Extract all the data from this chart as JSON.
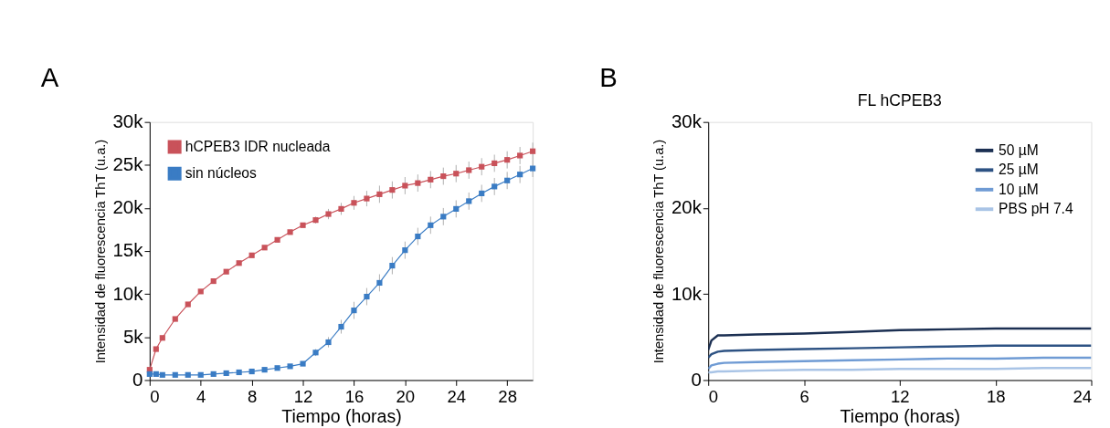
{
  "chart_data": [
    {
      "type": "line",
      "annotations": [
        "A"
      ],
      "xlabel": "Tiempo (horas)",
      "ylabel": "Intensidad de fluorescencia ThT (u.a.)",
      "x": [
        0,
        0.5,
        1,
        2,
        3,
        4,
        5,
        6,
        7,
        8,
        9,
        10,
        11,
        12,
        13,
        14,
        15,
        16,
        17,
        18,
        19,
        20,
        21,
        22,
        23,
        24,
        25,
        26,
        27,
        28,
        29,
        30
      ],
      "series": [
        {
          "name": "hCPEB3 IDR nucleada",
          "color": "#c9525a",
          "values": [
            1200,
            3600,
            4900,
            7100,
            8800,
            10300,
            11500,
            12600,
            13600,
            14500,
            15400,
            16300,
            17200,
            18000,
            18600,
            19300,
            19900,
            20600,
            21100,
            21600,
            22100,
            22600,
            22900,
            23300,
            23700,
            24000,
            24400,
            24800,
            25200,
            25600,
            26100,
            26600
          ],
          "errors": [
            null,
            null,
            null,
            null,
            null,
            null,
            null,
            null,
            null,
            null,
            null,
            null,
            null,
            null,
            400,
            600,
            700,
            800,
            900,
            1000,
            1000,
            1000,
            1000,
            1000,
            1000,
            1000,
            1000,
            1000,
            1000,
            1000,
            1000,
            1000
          ]
        },
        {
          "name": "sin núcleos",
          "color": "#3a7cc4",
          "values": [
            700,
            700,
            600,
            600,
            600,
            600,
            700,
            800,
            900,
            1000,
            1200,
            1400,
            1600,
            1900,
            3200,
            4400,
            6200,
            8100,
            9700,
            11300,
            13300,
            15100,
            16700,
            18000,
            19000,
            19900,
            20800,
            21700,
            22500,
            23200,
            23900,
            24600
          ],
          "errors": [
            null,
            null,
            null,
            null,
            null,
            null,
            null,
            null,
            null,
            null,
            null,
            null,
            null,
            null,
            400,
            600,
            800,
            1000,
            1000,
            1000,
            1000,
            1000,
            1000,
            1000,
            1000,
            1000,
            1000,
            1000,
            1000,
            1000,
            1000,
            1000
          ]
        }
      ],
      "xlim": [
        0,
        30
      ],
      "xticks": [
        0,
        4,
        8,
        12,
        16,
        20,
        24,
        28
      ],
      "ylim": [
        0,
        30000
      ],
      "yticks": [
        {
          "value": 0,
          "label": "0"
        },
        {
          "value": 5000,
          "label": "5k"
        },
        {
          "value": 10000,
          "label": "10k"
        },
        {
          "value": 15000,
          "label": "15k"
        },
        {
          "value": 20000,
          "label": "20k"
        },
        {
          "value": 25000,
          "label": "25k"
        },
        {
          "value": 30000,
          "label": "30k"
        }
      ],
      "marker": "square",
      "legend": "top left",
      "grid": false
    },
    {
      "type": "line",
      "annotations": [
        "B"
      ],
      "title": "FL hCPEB3",
      "xlabel": "Tiempo (horas)",
      "ylabel": "Intensidad de fluorescencia ThT (u.a.)",
      "x": [
        0,
        0.2,
        0.6,
        1,
        3,
        6,
        9,
        12,
        15,
        18,
        21,
        24
      ],
      "series": [
        {
          "name": "50 µM",
          "color": "#1b2f52",
          "values": [
            3500,
            4600,
            5200,
            5200,
            5300,
            5400,
            5600,
            5800,
            5900,
            6000,
            6000,
            6000
          ]
        },
        {
          "name": "25 µM",
          "color": "#2d5283",
          "values": [
            2600,
            3000,
            3300,
            3400,
            3500,
            3600,
            3700,
            3800,
            3900,
            4000,
            4000,
            4000
          ]
        },
        {
          "name": "10 µM",
          "color": "#6f9bd4",
          "values": [
            1300,
            1700,
            1900,
            2000,
            2100,
            2200,
            2300,
            2400,
            2500,
            2500,
            2600,
            2600
          ]
        },
        {
          "name": "PBS pH 7.4",
          "color": "#a9c4e6",
          "values": [
            900,
            900,
            1000,
            1000,
            1100,
            1200,
            1200,
            1300,
            1300,
            1300,
            1400,
            1400
          ]
        }
      ],
      "xlim": [
        0,
        24
      ],
      "xticks": [
        0,
        6,
        12,
        18,
        24
      ],
      "ylim": [
        0,
        30000
      ],
      "yticks": [
        {
          "value": 0,
          "label": "0"
        },
        {
          "value": 10000,
          "label": "10k"
        },
        {
          "value": 20000,
          "label": "20k"
        },
        {
          "value": 30000,
          "label": "30k"
        }
      ],
      "marker": "none",
      "legend": "top right",
      "grid": false
    }
  ]
}
